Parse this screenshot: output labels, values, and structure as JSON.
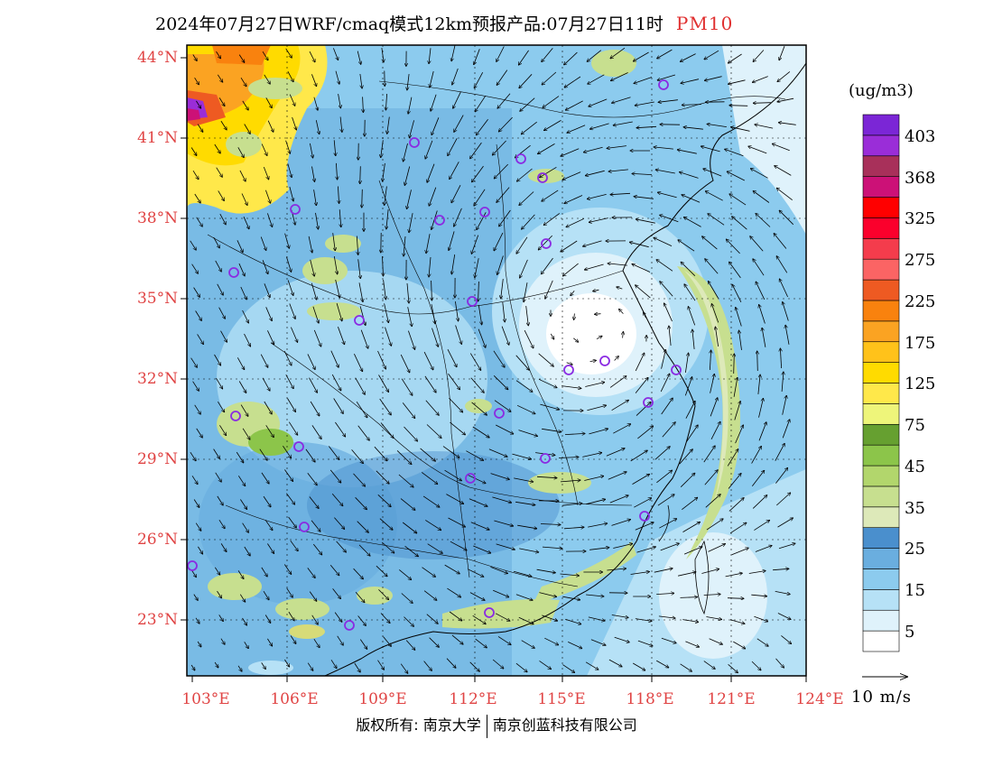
{
  "title": {
    "text": "2024年07月27日WRF/cmaq模式12km预报产品:07月27日11时",
    "pollutant": "PM10"
  },
  "lat_labels": [
    "44°N",
    "41°N",
    "38°N",
    "35°N",
    "32°N",
    "29°N",
    "26°N",
    "23°N"
  ],
  "lon_labels": [
    "103°E",
    "106°E",
    "109°E",
    "112°E",
    "115°E",
    "118°E",
    "121°E",
    "124°E"
  ],
  "colorbar": {
    "unit": "(ug/m3)",
    "labels": [
      "403",
      "368",
      "325",
      "275",
      "225",
      "175",
      "125",
      "75",
      "45",
      "35",
      "25",
      "15",
      "5"
    ],
    "colors": [
      "#ffffff",
      "#dff2fb",
      "#b6e1f6",
      "#8ccbee",
      "#6aaedf",
      "#4a8fcd",
      "#dde9b9",
      "#c7df8f",
      "#b2d66c",
      "#8cc54a",
      "#66a030",
      "#eef57a",
      "#ffe84a",
      "#ffdb00",
      "#ffc21a",
      "#fba322",
      "#f9820e",
      "#ee5a22",
      "#fb6464",
      "#f43c4c",
      "#fb002c",
      "#ff0000",
      "#cc1177",
      "#a8305a",
      "#9a2dd8",
      "#7b26d6"
    ]
  },
  "wind_reference": {
    "label": "10 m/s"
  },
  "credit": {
    "left": "版权所有: 南京大学",
    "right": "南京创蓝科技有限公司"
  }
}
